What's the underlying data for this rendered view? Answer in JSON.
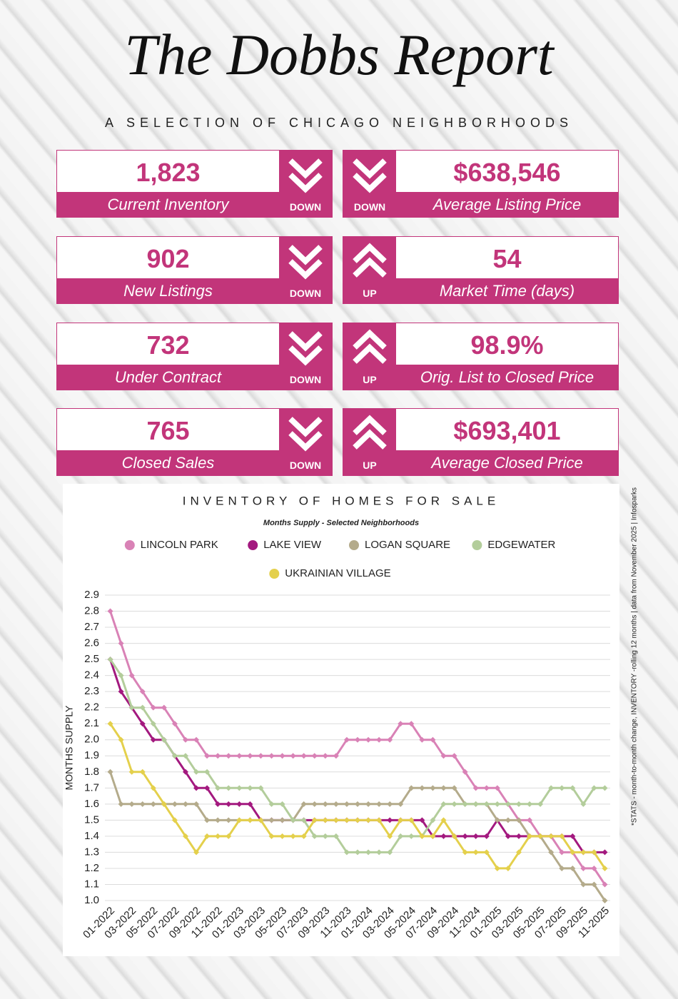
{
  "header": {
    "title": "The Dobbs Report",
    "subtitle": "A SELECTION OF CHICAGO NEIGHBORHOODS"
  },
  "stats": [
    {
      "value": "1,823",
      "label": "Current Inventory",
      "direction": "DOWN"
    },
    {
      "value": "$638,546",
      "label": "Average Listing Price",
      "direction": "DOWN"
    },
    {
      "value": "902",
      "label": "New Listings",
      "direction": "DOWN"
    },
    {
      "value": "54",
      "label": "Market Time (days)",
      "direction": "UP"
    },
    {
      "value": "732",
      "label": "Under Contract",
      "direction": "DOWN"
    },
    {
      "value": "98.9%",
      "label": "Orig. List to Closed Price",
      "direction": "UP"
    },
    {
      "value": "765",
      "label": "Closed Sales",
      "direction": "DOWN"
    },
    {
      "value": "$693,401",
      "label": "Average Closed Price",
      "direction": "UP"
    }
  ],
  "side_note": "*STATS  - month-to-month change, INVENTORY -rolling 12 months | data from November  2025 | Infosparks",
  "chart_data": {
    "type": "line",
    "title": "INVENTORY OF HOMES FOR SALE",
    "subtitle": "Months Supply - Selected Neighborhoods",
    "y_label": "MONTHS SUPPLY",
    "categories": [
      "01-2022",
      null,
      "03-2022",
      null,
      "05-2022",
      null,
      "07-2022",
      null,
      "09-2022",
      null,
      "11-2022",
      null,
      "01-2023",
      null,
      "03-2023",
      null,
      "05-2023",
      null,
      "07-2023",
      null,
      "09-2023",
      null,
      "11-2023",
      null,
      "01-2024",
      null,
      "03-2024",
      null,
      "05-2024",
      null,
      "07-2024",
      null,
      "09-2024",
      null,
      "11-2024",
      null,
      "01-2025",
      null,
      "03-2025",
      null,
      "05-2025",
      null,
      "07-2025",
      null,
      "09-2025",
      null,
      "11-2025"
    ],
    "series": [
      {
        "name": "LINCOLN PARK",
        "color": "#d982b6",
        "values": [
          2.8,
          2.6,
          2.4,
          2.3,
          2.2,
          2.2,
          2.1,
          2.0,
          2.0,
          1.9,
          1.9,
          1.9,
          1.9,
          1.9,
          1.9,
          1.9,
          1.9,
          1.9,
          1.9,
          1.9,
          1.9,
          1.9,
          2.0,
          2.0,
          2.0,
          2.0,
          2.0,
          2.1,
          2.1,
          2.0,
          2.0,
          1.9,
          1.9,
          1.8,
          1.7,
          1.7,
          1.7,
          1.6,
          1.5,
          1.5,
          1.4,
          1.4,
          1.3,
          1.3,
          1.2,
          1.2,
          1.1
        ]
      },
      {
        "name": "LAKE VIEW",
        "color": "#a3197f",
        "values": [
          2.5,
          2.3,
          2.2,
          2.1,
          2.0,
          2.0,
          1.9,
          1.8,
          1.7,
          1.7,
          1.6,
          1.6,
          1.6,
          1.6,
          1.5,
          1.5,
          1.5,
          1.5,
          1.5,
          1.5,
          1.5,
          1.5,
          1.5,
          1.5,
          1.5,
          1.5,
          1.5,
          1.5,
          1.5,
          1.5,
          1.4,
          1.4,
          1.4,
          1.4,
          1.4,
          1.4,
          1.5,
          1.4,
          1.4,
          1.4,
          1.4,
          1.4,
          1.4,
          1.4,
          1.3,
          1.3,
          1.3
        ]
      },
      {
        "name": "LOGAN SQUARE",
        "color": "#b4ab8b",
        "values": [
          1.8,
          1.6,
          1.6,
          1.6,
          1.6,
          1.6,
          1.6,
          1.6,
          1.6,
          1.5,
          1.5,
          1.5,
          1.5,
          1.5,
          1.5,
          1.5,
          1.5,
          1.5,
          1.6,
          1.6,
          1.6,
          1.6,
          1.6,
          1.6,
          1.6,
          1.6,
          1.6,
          1.6,
          1.7,
          1.7,
          1.7,
          1.7,
          1.7,
          1.6,
          1.6,
          1.6,
          1.5,
          1.5,
          1.5,
          1.4,
          1.4,
          1.3,
          1.2,
          1.2,
          1.1,
          1.1,
          1.0
        ]
      },
      {
        "name": "EDGEWATER",
        "color": "#b3cd9b",
        "values": [
          2.5,
          2.4,
          2.2,
          2.2,
          2.1,
          2.0,
          1.9,
          1.9,
          1.8,
          1.8,
          1.7,
          1.7,
          1.7,
          1.7,
          1.7,
          1.6,
          1.6,
          1.5,
          1.5,
          1.4,
          1.4,
          1.4,
          1.3,
          1.3,
          1.3,
          1.3,
          1.3,
          1.4,
          1.4,
          1.4,
          1.5,
          1.6,
          1.6,
          1.6,
          1.6,
          1.6,
          1.6,
          1.6,
          1.6,
          1.6,
          1.6,
          1.7,
          1.7,
          1.7,
          1.6,
          1.7,
          1.7
        ]
      },
      {
        "name": "UKRAINIAN VILLAGE",
        "color": "#e4d04c",
        "values": [
          2.1,
          2.0,
          1.8,
          1.8,
          1.7,
          1.6,
          1.5,
          1.4,
          1.3,
          1.4,
          1.4,
          1.4,
          1.5,
          1.5,
          1.5,
          1.4,
          1.4,
          1.4,
          1.4,
          1.5,
          1.5,
          1.5,
          1.5,
          1.5,
          1.5,
          1.5,
          1.4,
          1.5,
          1.5,
          1.4,
          1.4,
          1.5,
          1.4,
          1.3,
          1.3,
          1.3,
          1.2,
          1.2,
          1.3,
          1.4,
          1.4,
          1.4,
          1.4,
          1.3,
          1.3,
          1.3,
          1.2
        ]
      }
    ],
    "ylim": [
      1.0,
      2.9
    ],
    "yticks": [
      {
        "value": 1.0,
        "label": "1.0"
      },
      1.1,
      1.2,
      1.3,
      1.4,
      1.5,
      1.6,
      1.7,
      1.8,
      1.9,
      {
        "value": 2.0,
        "label": "2.0"
      },
      2.1,
      2.2,
      2.3,
      2.4,
      2.5,
      2.6,
      2.7,
      2.8,
      2.9
    ],
    "grid": true
  }
}
